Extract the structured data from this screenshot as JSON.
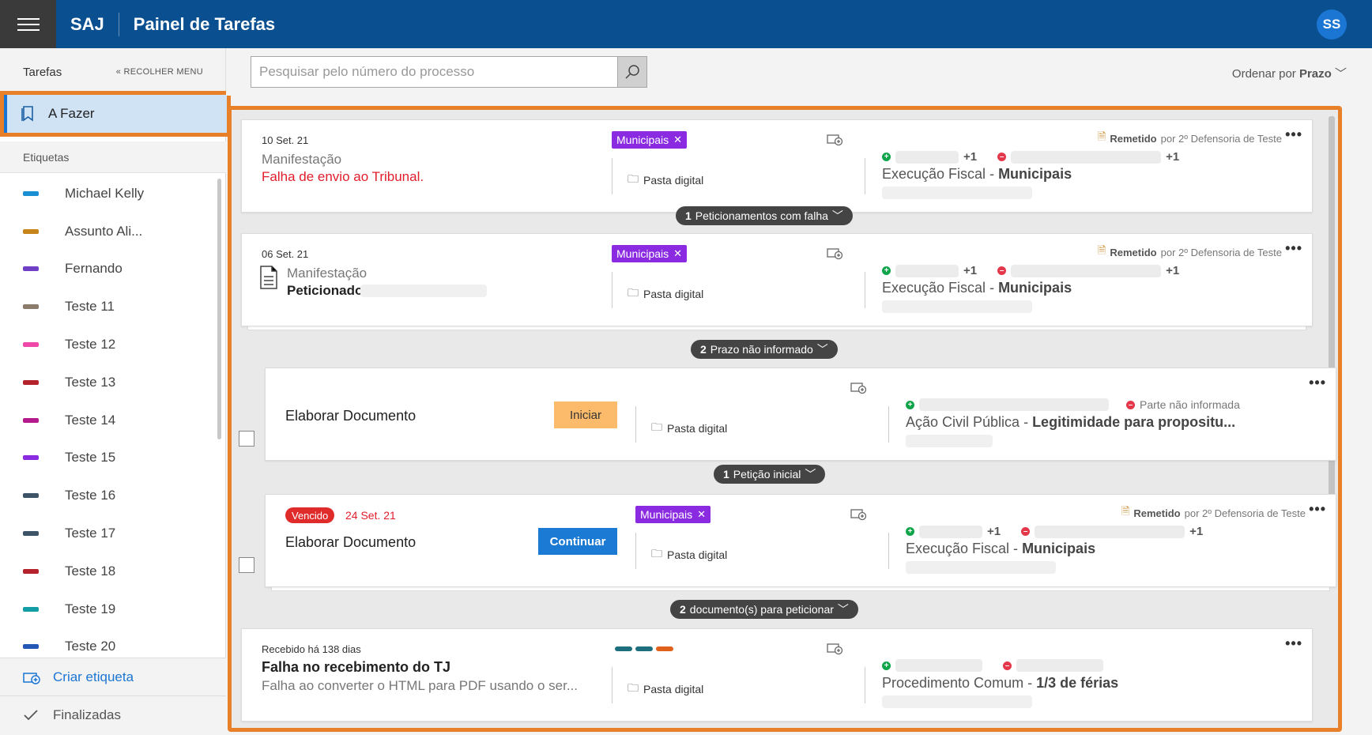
{
  "header": {
    "brand": "SAJ",
    "title": "Painel de Tarefas",
    "avatar_initials": "SS"
  },
  "sidebar": {
    "section_title": "Tarefas",
    "collapse_label": "RECOLHER MENU",
    "active_item": "A Fazer",
    "labels_section": "Etiquetas",
    "labels": [
      {
        "name": "Michael Kelly",
        "color": "#1b8fd4"
      },
      {
        "name": "Assunto Ali...",
        "color": "#c7841a"
      },
      {
        "name": "Fernando",
        "color": "#6f3fc5"
      },
      {
        "name": "Teste 11",
        "color": "#8c7a6a"
      },
      {
        "name": "Teste 12",
        "color": "#ef48a8"
      },
      {
        "name": "Teste 13",
        "color": "#b4222b"
      },
      {
        "name": "Teste 14",
        "color": "#b4198e"
      },
      {
        "name": "Teste 15",
        "color": "#8a2be2"
      },
      {
        "name": "Teste 16",
        "color": "#3d5468"
      },
      {
        "name": "Teste 17",
        "color": "#3d5468"
      },
      {
        "name": "Teste 18",
        "color": "#b4222b"
      },
      {
        "name": "Teste 19",
        "color": "#139ea6"
      },
      {
        "name": "Teste 20",
        "color": "#2457b5"
      }
    ],
    "create_label": "Criar etiqueta",
    "finished": "Finalizadas"
  },
  "toolbar": {
    "search_placeholder": "Pesquisar pelo número do processo",
    "order_prefix": "Ordenar por",
    "order_value": "Prazo"
  },
  "cards": [
    {
      "date": "10 Set. 21",
      "kind": "Manifestação",
      "status": "Falha de envio ao Tribunal.",
      "tag": "Municipais",
      "folder": "Pasta digital",
      "remetido": "Remetido",
      "remetido_by": "por 2º Defensoria de Teste",
      "plus_a": "+1",
      "plus_b": "+1",
      "classe": "Execução Fiscal - ",
      "classe_bold": "Municipais",
      "pill_count": "1",
      "pill_text": "Peticionamentos com falha"
    },
    {
      "date": "06 Set. 21",
      "kind": "Manifestação",
      "status": "Peticionado",
      "tag": "Municipais",
      "folder": "Pasta digital",
      "remetido": "Remetido",
      "remetido_by": "por 2º Defensoria de Teste",
      "plus_a": "+1",
      "plus_b": "+1",
      "classe": "Execução Fiscal - ",
      "classe_bold": "Municipais",
      "pill_count": "2",
      "pill_text": "Prazo não informado"
    },
    {
      "title": "Elaborar Documento",
      "button": "Iniciar",
      "folder": "Pasta digital",
      "party_missing": "Parte não informada",
      "classe": "Ação Civil Pública - ",
      "classe_bold": "Legitimidade para propositu...",
      "pill_count": "1",
      "pill_text": "Petição inicial"
    },
    {
      "badge": "Vencido",
      "date": "24 Set. 21",
      "title": "Elaborar Documento",
      "button": "Continuar",
      "tag": "Municipais",
      "folder": "Pasta digital",
      "remetido": "Remetido",
      "remetido_by": "por 2º Defensoria de Teste",
      "plus_a": "+1",
      "plus_b": "+1",
      "classe": "Execução Fiscal - ",
      "classe_bold": "Municipais",
      "pill_count": "2",
      "pill_text": "documento(s) para peticionar"
    },
    {
      "date": "Recebido há 138 dias",
      "title": "Falha no recebimento do TJ",
      "subtitle": "Falha ao converter o HTML para PDF usando o ser...",
      "folder": "Pasta digital",
      "tag_colors": [
        "#1d6f7d",
        "#1d6f7d",
        "#e0611b"
      ],
      "classe": "Procedimento Comum - ",
      "classe_bold": "1/3 de férias"
    }
  ]
}
